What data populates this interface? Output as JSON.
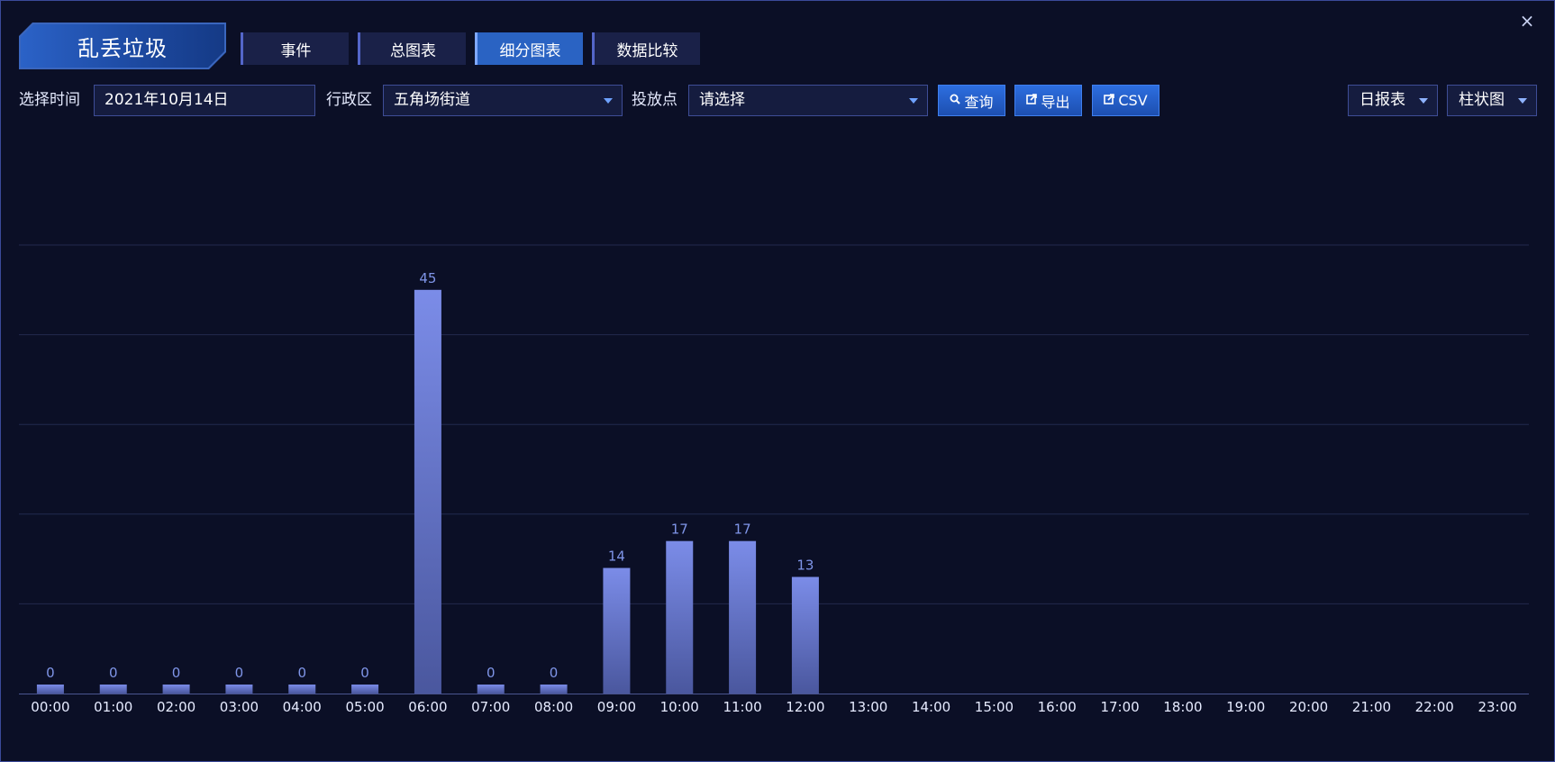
{
  "header": {
    "title": "乱丢垃圾",
    "close_glyph": "×"
  },
  "tabs": [
    {
      "label": "事件",
      "active": false
    },
    {
      "label": "总图表",
      "active": false
    },
    {
      "label": "细分图表",
      "active": true
    },
    {
      "label": "数据比较",
      "active": false
    }
  ],
  "toolbar": {
    "time_label": "选择时间",
    "time_value": "2021年10月14日",
    "district_label": "行政区",
    "district_value": "五角场街道",
    "point_label": "投放点",
    "point_placeholder": "请选择",
    "query_label": "查询",
    "export_label": "导出",
    "csv_label": "CSV",
    "report_type": "日报表",
    "chart_type": "柱状图"
  },
  "colors": {
    "background": "#0b0f26",
    "bar_top": "#7b8ce8",
    "bar_bottom": "#4a579e",
    "label": "#7f95e8",
    "accent": "#2a63c3"
  },
  "chart_data": {
    "type": "bar",
    "categories": [
      "00:00",
      "01:00",
      "02:00",
      "03:00",
      "04:00",
      "05:00",
      "06:00",
      "07:00",
      "08:00",
      "09:00",
      "10:00",
      "11:00",
      "12:00",
      "13:00",
      "14:00",
      "15:00",
      "16:00",
      "17:00",
      "18:00",
      "19:00",
      "20:00",
      "21:00",
      "22:00",
      "23:00"
    ],
    "values": [
      0,
      0,
      0,
      0,
      0,
      0,
      45,
      0,
      0,
      14,
      17,
      17,
      13,
      null,
      null,
      null,
      null,
      null,
      null,
      null,
      null,
      null,
      null,
      null
    ],
    "ylim": [
      0,
      50
    ],
    "grid": true,
    "data_labels": true,
    "legend": false
  }
}
